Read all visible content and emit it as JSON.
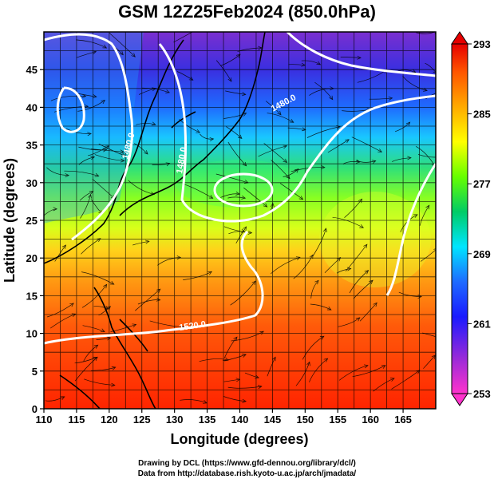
{
  "title": "GSM 12Z25Feb2024 (850.0hPa)",
  "map": {
    "x_axis": {
      "label": "Longitude (degrees)",
      "range": [
        110,
        170
      ],
      "ticks": [
        "110",
        "115",
        "120",
        "125",
        "130",
        "135",
        "140",
        "145",
        "150",
        "155",
        "160",
        "165"
      ]
    },
    "y_axis": {
      "label": "Latitude  (degrees)",
      "range": [
        0,
        50
      ],
      "ticks": [
        "0",
        "5",
        "10",
        "15",
        "20",
        "25",
        "30",
        "35",
        "40",
        "45"
      ]
    },
    "colorbar": {
      "range": [
        253,
        293
      ],
      "ticks": [
        "253",
        "261",
        "269",
        "277",
        "285",
        "293"
      ],
      "palette": [
        "#ff33cc",
        "#8a2be2",
        "#1a1aff",
        "#1e90ff",
        "#00e5ff",
        "#00cc66",
        "#66ff00",
        "#ffff00",
        "#ff9900",
        "#ff3300",
        "#e60000"
      ]
    },
    "contour_labels": [
      "1480.0",
      "1480.0",
      "1480.0",
      "1520.0"
    ],
    "contour_color": "#ffffff"
  },
  "credits": {
    "line1": "Drawing by DCL (https://www.gfd-dennou.org/library/dcl/)",
    "line2": "Data from http://database.rish.kyoto-u.ac.jp/arch/jmadata/"
  }
}
